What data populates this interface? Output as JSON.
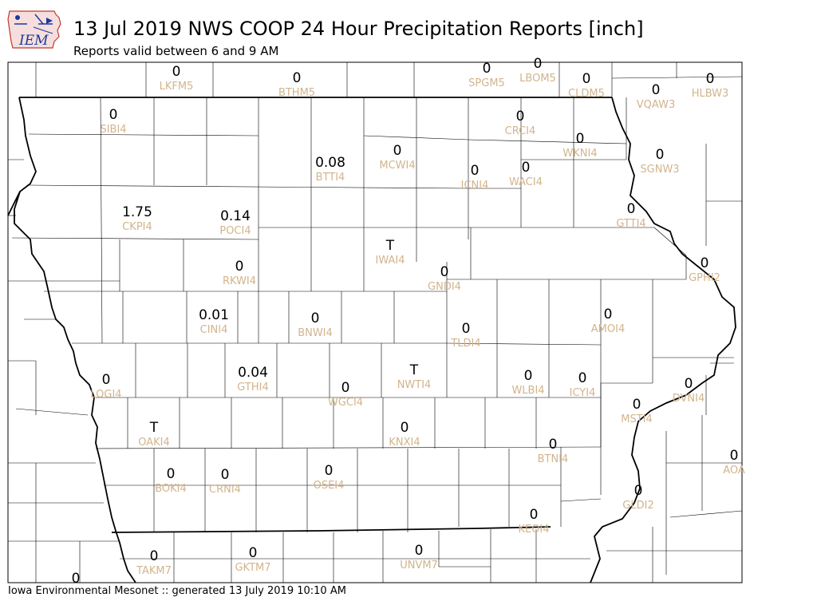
{
  "header": {
    "logo_text": "IEM",
    "title": "13 Jul 2019 NWS COOP 24 Hour Precipitation Reports [inch]",
    "subtitle": "Reports valid between 6 and 9 AM"
  },
  "footer": {
    "text": "Iowa Environmental Mesonet :: generated 13 July 2019 10:10 AM"
  },
  "map": {
    "stations": [
      {
        "id": "LKFM5",
        "value": "0"
      },
      {
        "id": "BTHM5",
        "value": "0"
      },
      {
        "id": "SPGM5",
        "value": "0"
      },
      {
        "id": "LBOM5",
        "value": "0"
      },
      {
        "id": "CLDM5",
        "value": "0"
      },
      {
        "id": "HLBW3",
        "value": "0"
      },
      {
        "id": "VQAW3",
        "value": "0"
      },
      {
        "id": "SIBI4",
        "value": "0"
      },
      {
        "id": "CRCI4",
        "value": "0"
      },
      {
        "id": "WKNI4",
        "value": "0"
      },
      {
        "id": "SGNW3",
        "value": "0"
      },
      {
        "id": "BTTI4",
        "value": "0.08"
      },
      {
        "id": "MCWI4",
        "value": "0"
      },
      {
        "id": "ICNI4",
        "value": "0"
      },
      {
        "id": "WACI4",
        "value": "0"
      },
      {
        "id": "CKPI4",
        "value": "1.75"
      },
      {
        "id": "POCI4",
        "value": "0.14"
      },
      {
        "id": "GTTI4",
        "value": "0"
      },
      {
        "id": "IWAI4",
        "value": "T"
      },
      {
        "id": "RKWI4",
        "value": "0"
      },
      {
        "id": "GNDI4",
        "value": "0"
      },
      {
        "id": "GPHI2",
        "value": "0"
      },
      {
        "id": "CINI4",
        "value": "0.01"
      },
      {
        "id": "BNWI4",
        "value": "0"
      },
      {
        "id": "AMOI4",
        "value": "0"
      },
      {
        "id": "TLDI4",
        "value": "0"
      },
      {
        "id": "LOGI4",
        "value": "0"
      },
      {
        "id": "GTHI4",
        "value": "0.04"
      },
      {
        "id": "NWTI4",
        "value": "T"
      },
      {
        "id": "WGCI4",
        "value": "0"
      },
      {
        "id": "WLBI4",
        "value": "0"
      },
      {
        "id": "ICYI4",
        "value": "0"
      },
      {
        "id": "DVNI4",
        "value": "0"
      },
      {
        "id": "MSTI4",
        "value": "0"
      },
      {
        "id": "OAKI4",
        "value": "T"
      },
      {
        "id": "KNXI4",
        "value": "0"
      },
      {
        "id": "BTNI4",
        "value": "0"
      },
      {
        "id": "AOA",
        "value": "0"
      },
      {
        "id": "BOKI4",
        "value": "0"
      },
      {
        "id": "CRNI4",
        "value": "0"
      },
      {
        "id": "OSEI4",
        "value": "0"
      },
      {
        "id": "GLDI2",
        "value": "0"
      },
      {
        "id": "KEOI4",
        "value": "0"
      },
      {
        "id": "TAKM7",
        "value": "0"
      },
      {
        "id": "GKTM7",
        "value": "0"
      },
      {
        "id": "UNVM7",
        "value": "0"
      },
      {
        "id": "",
        "value": "0"
      }
    ]
  },
  "colors": {
    "station_id": "#d2b48c",
    "value": "#000000",
    "border": "#000000",
    "logo_text": "#1a3a9a",
    "logo_state": "#c0392b"
  }
}
